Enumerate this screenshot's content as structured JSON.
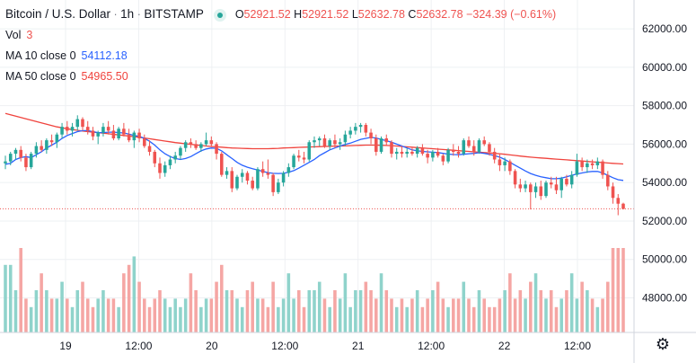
{
  "legend": {
    "symbol": "Bitcoin / U.S. Dollar",
    "interval": "1h",
    "exchange": "BITSTAMP",
    "o_label": "O",
    "o_value": "52921.52",
    "h_label": "H",
    "h_value": "52921.52",
    "l_label": "L",
    "l_value": "52632.78",
    "c_label": "C",
    "c_value": "52632.78",
    "change": "−324.39 (−0.61%)",
    "vol_label": "Vol",
    "vol_value": "3",
    "ma10_label": "MA 10 close 0",
    "ma10_value": "54112.18",
    "ma50_label": "MA 50 close 0",
    "ma50_value": "54965.50"
  },
  "colors": {
    "up": "#26a69a",
    "down": "#ef5350",
    "up_vol": "#8fd3cb",
    "down_vol": "#f5a6a4",
    "ma10": "#2962ff",
    "ma50": "#f0433d",
    "grid": "#eef0f3"
  },
  "chart_data": {
    "type": "candlestick",
    "price_axis_ticks": [
      "62000.00",
      "60000.00",
      "58000.00",
      "56000.00",
      "54000.00",
      "52000.00",
      "50000.00",
      "48000.00"
    ],
    "time_axis_ticks": [
      "19",
      "12:00",
      "20",
      "12:00",
      "21",
      "12:00",
      "22",
      "12:00"
    ],
    "ylim": [
      46200,
      63500
    ],
    "volume_scale_max": 10,
    "candles": [
      [
        55000,
        55400,
        54700,
        55100
      ],
      [
        55100,
        55600,
        54900,
        55500
      ],
      [
        55500,
        55800,
        55200,
        55700
      ],
      [
        55700,
        55900,
        55100,
        55300
      ],
      [
        55300,
        55500,
        54600,
        54800
      ],
      [
        54800,
        55600,
        54700,
        55500
      ],
      [
        55500,
        56100,
        55300,
        55900
      ],
      [
        55900,
        56200,
        55600,
        55700
      ],
      [
        55700,
        56300,
        55500,
        56200
      ],
      [
        56200,
        56500,
        55900,
        56100
      ],
      [
        56100,
        56600,
        55800,
        56500
      ],
      [
        56500,
        57100,
        56300,
        56900
      ],
      [
        56900,
        57200,
        56500,
        56700
      ],
      [
        56700,
        57100,
        56400,
        56900
      ],
      [
        56900,
        57500,
        56700,
        57300
      ],
      [
        57300,
        57400,
        56700,
        56900
      ],
      [
        56900,
        57200,
        56500,
        56700
      ],
      [
        56700,
        56900,
        56200,
        56400
      ],
      [
        56400,
        56700,
        56000,
        56600
      ],
      [
        56600,
        57100,
        56400,
        56900
      ],
      [
        56900,
        57200,
        56500,
        56700
      ],
      [
        56700,
        57000,
        56200,
        56300
      ],
      [
        56300,
        56900,
        56200,
        56800
      ],
      [
        56800,
        57100,
        56400,
        56500
      ],
      [
        56500,
        56800,
        56100,
        56200
      ],
      [
        56200,
        56700,
        55800,
        56600
      ],
      [
        56600,
        56800,
        56100,
        56300
      ],
      [
        56300,
        56500,
        55800,
        55900
      ],
      [
        55900,
        56200,
        55400,
        55600
      ],
      [
        55600,
        55700,
        54800,
        55000
      ],
      [
        55000,
        55300,
        54200,
        54500
      ],
      [
        54500,
        55100,
        54300,
        54900
      ],
      [
        54900,
        55400,
        54700,
        55200
      ],
      [
        55200,
        55600,
        55000,
        55400
      ],
      [
        55400,
        55900,
        55200,
        55800
      ],
      [
        55800,
        56200,
        55600,
        56100
      ],
      [
        56100,
        56300,
        55800,
        56000
      ],
      [
        56000,
        56200,
        55700,
        55800
      ],
      [
        55800,
        56100,
        55600,
        56000
      ],
      [
        56000,
        56600,
        55900,
        56200
      ],
      [
        56200,
        56400,
        55900,
        56000
      ],
      [
        56000,
        56100,
        55200,
        55500
      ],
      [
        55500,
        55600,
        54300,
        54400
      ],
      [
        54400,
        54800,
        54200,
        54600
      ],
      [
        54600,
        54800,
        53500,
        53700
      ],
      [
        53700,
        54400,
        53600,
        54300
      ],
      [
        54300,
        54700,
        54000,
        54500
      ],
      [
        54500,
        54600,
        53900,
        54100
      ],
      [
        54100,
        54300,
        53600,
        53700
      ],
      [
        53700,
        54800,
        53600,
        54700
      ],
      [
        54700,
        55100,
        54300,
        54500
      ],
      [
        54500,
        55200,
        54200,
        54400
      ],
      [
        54400,
        54500,
        53300,
        53500
      ],
      [
        53500,
        54200,
        53400,
        54000
      ],
      [
        54000,
        54600,
        53800,
        54500
      ],
      [
        54500,
        55000,
        54300,
        54800
      ],
      [
        54800,
        55500,
        54700,
        55400
      ],
      [
        55400,
        55700,
        55100,
        55300
      ],
      [
        55300,
        55600,
        55000,
        55200
      ],
      [
        55200,
        56200,
        55100,
        56100
      ],
      [
        56100,
        56400,
        55800,
        56200
      ],
      [
        56200,
        56400,
        55900,
        56300
      ],
      [
        56300,
        56500,
        55800,
        55900
      ],
      [
        55900,
        56300,
        55700,
        56200
      ],
      [
        56200,
        56500,
        55800,
        56000
      ],
      [
        56000,
        56300,
        55700,
        56100
      ],
      [
        56100,
        56700,
        55900,
        56500
      ],
      [
        56500,
        56900,
        56300,
        56700
      ],
      [
        56700,
        57100,
        56500,
        56900
      ],
      [
        56900,
        57100,
        56600,
        57000
      ],
      [
        57000,
        57100,
        56400,
        56600
      ],
      [
        56600,
        56800,
        56000,
        56300
      ],
      [
        56300,
        56500,
        55400,
        55600
      ],
      [
        55600,
        56400,
        55500,
        56300
      ],
      [
        56300,
        56500,
        55900,
        56100
      ],
      [
        56100,
        56200,
        55300,
        55500
      ],
      [
        55500,
        55800,
        55200,
        55600
      ],
      [
        55600,
        55900,
        55300,
        55500
      ],
      [
        55500,
        55800,
        55300,
        55600
      ],
      [
        55600,
        55800,
        55400,
        55500
      ],
      [
        55500,
        55900,
        55300,
        55800
      ],
      [
        55800,
        56000,
        55400,
        55500
      ],
      [
        55500,
        55700,
        55000,
        55300
      ],
      [
        55300,
        55700,
        55100,
        55600
      ],
      [
        55600,
        55800,
        55300,
        55400
      ],
      [
        55400,
        55500,
        54900,
        55100
      ],
      [
        55100,
        55800,
        55000,
        55700
      ],
      [
        55700,
        56000,
        55400,
        55600
      ],
      [
        55600,
        55900,
        55300,
        55500
      ],
      [
        55500,
        56300,
        55400,
        56200
      ],
      [
        56200,
        56400,
        55800,
        55900
      ],
      [
        55900,
        56200,
        55400,
        55600
      ],
      [
        55600,
        56300,
        55500,
        56200
      ],
      [
        56200,
        56400,
        55900,
        56000
      ],
      [
        56000,
        56100,
        55400,
        55600
      ],
      [
        55600,
        55800,
        55000,
        55200
      ],
      [
        55200,
        55500,
        54600,
        54900
      ],
      [
        54900,
        55300,
        54600,
        55100
      ],
      [
        55100,
        55200,
        54400,
        54600
      ],
      [
        54600,
        54700,
        53700,
        53900
      ],
      [
        53900,
        54200,
        53500,
        53700
      ],
      [
        53700,
        54100,
        53500,
        53900
      ],
      [
        53900,
        54000,
        52600,
        53500
      ],
      [
        53500,
        54000,
        53200,
        53800
      ],
      [
        53800,
        54100,
        53100,
        53300
      ],
      [
        53300,
        54100,
        53200,
        54000
      ],
      [
        54000,
        54300,
        53700,
        53900
      ],
      [
        53900,
        54300,
        53400,
        53600
      ],
      [
        53600,
        54300,
        53200,
        54200
      ],
      [
        54200,
        54400,
        53800,
        53900
      ],
      [
        53900,
        54600,
        53700,
        54400
      ],
      [
        54400,
        55500,
        54300,
        55100
      ],
      [
        55100,
        55300,
        54600,
        54800
      ],
      [
        54800,
        55200,
        54500,
        55000
      ],
      [
        55000,
        55200,
        54700,
        54900
      ],
      [
        54900,
        55300,
        54700,
        55100
      ],
      [
        55100,
        55200,
        54200,
        54400
      ],
      [
        54400,
        54600,
        53600,
        53800
      ],
      [
        53800,
        54000,
        52900,
        53200
      ],
      [
        53200,
        53400,
        52300,
        52900
      ],
      [
        52900,
        52950,
        52600,
        52630
      ]
    ],
    "volume": [
      8,
      8,
      5,
      10,
      4,
      3,
      5,
      7,
      5,
      4,
      4,
      6,
      4,
      3,
      5,
      6,
      4,
      3,
      4,
      5,
      4,
      4,
      3,
      7,
      8,
      9,
      6,
      4,
      3,
      4,
      5,
      4,
      3,
      4,
      3,
      4,
      7,
      5,
      3,
      4,
      4,
      6,
      8,
      5,
      5,
      4,
      3,
      5,
      6,
      4,
      4,
      3,
      6,
      3,
      4,
      7,
      4,
      5,
      3,
      5,
      5,
      6,
      4,
      3,
      5,
      4,
      7,
      3,
      5,
      5,
      6,
      5,
      4,
      7,
      5,
      4,
      3,
      4,
      3,
      4,
      5,
      3,
      4,
      5,
      6,
      4,
      3,
      4,
      4,
      6,
      4,
      3,
      5,
      4,
      3,
      3,
      4,
      5,
      7,
      4,
      5,
      4,
      6,
      7,
      5,
      4,
      5,
      3,
      4,
      5,
      7,
      4,
      6,
      5,
      4,
      3,
      4,
      6,
      10,
      10,
      10
    ],
    "ma10": [
      54950,
      55000,
      55200,
      55300,
      55350,
      55300,
      55450,
      55600,
      55800,
      55950,
      56100,
      56300,
      56450,
      56550,
      56650,
      56700,
      56700,
      56650,
      56600,
      56600,
      56620,
      56620,
      56600,
      56580,
      56520,
      56450,
      56400,
      56300,
      56150,
      55950,
      55700,
      55500,
      55350,
      55250,
      55200,
      55250,
      55350,
      55500,
      55650,
      55750,
      55800,
      55780,
      55650,
      55450,
      55250,
      55050,
      54900,
      54800,
      54720,
      54650,
      54580,
      54520,
      54480,
      54470,
      54480,
      54530,
      54620,
      54750,
      54900,
      55050,
      55200,
      55400,
      55550,
      55700,
      55800,
      55900,
      55980,
      56050,
      56150,
      56250,
      56300,
      56350,
      56320,
      56250,
      56180,
      56100,
      56000,
      55900,
      55800,
      55700,
      55650,
      55620,
      55600,
      55580,
      55560,
      55520,
      55480,
      55460,
      55450,
      55470,
      55500,
      55520,
      55550,
      55520,
      55470,
      55400,
      55320,
      55200,
      55050,
      54900,
      54750,
      54600,
      54470,
      54380,
      54300,
      54250,
      54200,
      54200,
      54230,
      54300,
      54380,
      54450,
      54500,
      54550,
      54580,
      54580,
      54500,
      54380,
      54250,
      54150,
      54112
    ],
    "ma50": [
      57600,
      57530,
      57460,
      57390,
      57320,
      57250,
      57180,
      57110,
      57040,
      56970,
      56900,
      56850,
      56800,
      56760,
      56720,
      56680,
      56650,
      56620,
      56600,
      56570,
      56540,
      56510,
      56480,
      56450,
      56420,
      56390,
      56360,
      56320,
      56280,
      56240,
      56200,
      56160,
      56120,
      56080,
      56050,
      56020,
      55990,
      55960,
      55930,
      55900,
      55880,
      55860,
      55840,
      55820,
      55800,
      55790,
      55780,
      55770,
      55760,
      55760,
      55760,
      55760,
      55770,
      55780,
      55800,
      55810,
      55820,
      55830,
      55840,
      55850,
      55860,
      55870,
      55880,
      55890,
      55900,
      55900,
      55910,
      55920,
      55930,
      55940,
      55950,
      55950,
      55950,
      55940,
      55930,
      55920,
      55900,
      55880,
      55860,
      55840,
      55820,
      55800,
      55780,
      55760,
      55740,
      55720,
      55700,
      55680,
      55660,
      55640,
      55620,
      55600,
      55580,
      55560,
      55540,
      55520,
      55500,
      55470,
      55440,
      55410,
      55380,
      55350,
      55320,
      55300,
      55280,
      55260,
      55240,
      55220,
      55200,
      55180,
      55160,
      55140,
      55120,
      55100,
      55080,
      55060,
      55040,
      55020,
      55000,
      54985,
      54965
    ],
    "last_price_level": 52632.78
  }
}
